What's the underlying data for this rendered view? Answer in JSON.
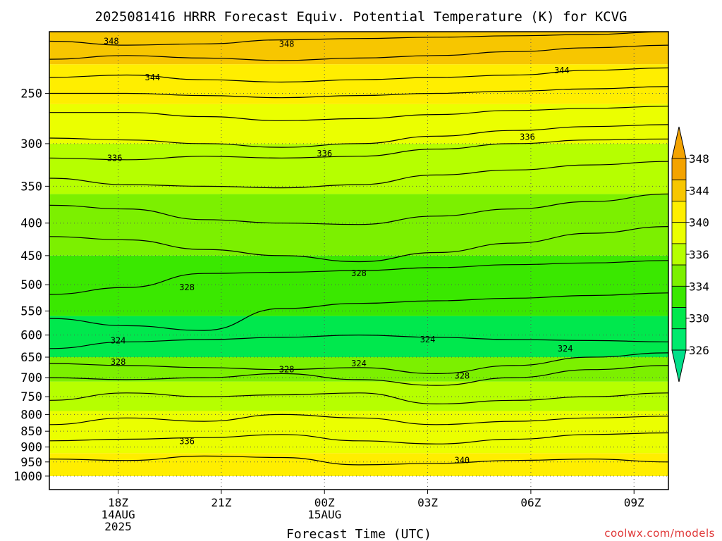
{
  "chart_data": {
    "type": "heatmap",
    "title": "2025081416 HRRR Forecast Equiv. Potential Temperature (K) for KCVG",
    "xlabel": "Forecast Time (UTC)",
    "ylabel": "",
    "y_scale": "log-pressure",
    "y_inverted": true,
    "x_range_hours": [
      -2,
      16
    ],
    "y_range_hpa": [
      200,
      1050
    ],
    "y_ticks": [
      250,
      300,
      350,
      400,
      450,
      500,
      550,
      600,
      650,
      700,
      750,
      800,
      850,
      900,
      950,
      1000
    ],
    "x_ticks": [
      {
        "hour": 0,
        "label": "18Z",
        "sub": [
          "14AUG",
          "2025"
        ]
      },
      {
        "hour": 3,
        "label": "21Z",
        "sub": []
      },
      {
        "hour": 6,
        "label": "00Z",
        "sub": [
          "15AUG"
        ]
      },
      {
        "hour": 9,
        "label": "03Z",
        "sub": []
      },
      {
        "hour": 12,
        "label": "06Z",
        "sub": []
      },
      {
        "hour": 15,
        "label": "09Z",
        "sub": []
      }
    ],
    "grid": "dotted",
    "colorbar": {
      "placement": "right",
      "labels": [
        348,
        344,
        340,
        336,
        334,
        330,
        326
      ],
      "bands": [
        {
          "color": "#f4a300"
        },
        {
          "color": "#f7c600"
        },
        {
          "color": "#ffee00"
        },
        {
          "color": "#ebff00"
        },
        {
          "color": "#b6ff00"
        },
        {
          "color": "#7cf000"
        },
        {
          "color": "#3ae800"
        },
        {
          "color": "#00e84d"
        },
        {
          "color": "#00ea6d"
        }
      ],
      "upper_arrow_color": "#f4a300",
      "lower_arrow_color": "#00e08a"
    },
    "fills": [
      {
        "p_top": 1050,
        "p_bot": 1000,
        "color": "#a84e2a"
      },
      {
        "p_top": 920,
        "p_bot": 1000,
        "color": "#ffee00"
      },
      {
        "p_top": 790,
        "p_bot": 920,
        "color": "#ebff00"
      },
      {
        "p_top": 710,
        "p_bot": 790,
        "color": "#b6ff00"
      },
      {
        "p_top": 650,
        "p_bot": 710,
        "color": "#7cf000"
      },
      {
        "p_top": 560,
        "p_bot": 650,
        "color": "#00e84d"
      },
      {
        "p_top": 450,
        "p_bot": 560,
        "color": "#3ae800"
      },
      {
        "p_top": 360,
        "p_bot": 450,
        "color": "#7cf000"
      },
      {
        "p_top": 300,
        "p_bot": 360,
        "color": "#b6ff00"
      },
      {
        "p_top": 260,
        "p_bot": 300,
        "color": "#ebff00"
      },
      {
        "p_top": 225,
        "p_bot": 260,
        "color": "#ffee00"
      },
      {
        "p_top": 200,
        "p_bot": 225,
        "color": "#f7c600"
      }
    ],
    "contours": [
      {
        "value": 348,
        "p": [
          207,
          210,
          209,
          206,
          205,
          204,
          203,
          202,
          200
        ]
      },
      {
        "value": 348,
        "p": [
          221,
          218,
          220,
          222,
          220,
          218,
          215,
          212,
          210
        ]
      },
      {
        "value": 344,
        "p": [
          236,
          234,
          238,
          240,
          238,
          236,
          234,
          230,
          228
        ]
      },
      {
        "value": 344,
        "p": [
          250,
          250,
          252,
          254,
          252,
          250,
          248,
          246,
          244
        ]
      },
      {
        "value": null,
        "p": [
          268,
          268,
          272,
          276,
          274,
          270,
          266,
          264,
          262
        ]
      },
      {
        "value": null,
        "p": [
          294,
          296,
          300,
          304,
          300,
          292,
          286,
          282,
          280
        ]
      },
      {
        "value": 336,
        "p": [
          316,
          318,
          314,
          316,
          314,
          306,
          300,
          296,
          295
        ]
      },
      {
        "value": 336,
        "p": [
          340,
          348,
          350,
          352,
          348,
          336,
          330,
          324,
          320
        ]
      },
      {
        "value": null,
        "p": [
          375,
          380,
          395,
          400,
          402,
          390,
          380,
          370,
          360
        ]
      },
      {
        "value": null,
        "p": [
          420,
          425,
          440,
          450,
          460,
          445,
          430,
          415,
          405
        ]
      },
      {
        "value": 328,
        "p": [
          518,
          505,
          480,
          478,
          475,
          470,
          465,
          462,
          458
        ]
      },
      {
        "value": null,
        "p": [
          565,
          580,
          590,
          545,
          535,
          530,
          525,
          520,
          515
        ]
      },
      {
        "value": 324,
        "p": [
          630,
          615,
          610,
          605,
          600,
          605,
          610,
          612,
          615
        ]
      },
      {
        "value": 328,
        "p": [
          665,
          670,
          675,
          680,
          675,
          690,
          670,
          650,
          640
        ]
      },
      {
        "value": null,
        "p": [
          700,
          705,
          700,
          690,
          705,
          720,
          700,
          680,
          670
        ]
      },
      {
        "value": null,
        "p": [
          760,
          740,
          750,
          745,
          740,
          770,
          760,
          750,
          740
        ]
      },
      {
        "value": null,
        "p": [
          830,
          810,
          820,
          800,
          810,
          830,
          820,
          810,
          805
        ]
      },
      {
        "value": 336,
        "p": [
          880,
          875,
          870,
          860,
          880,
          890,
          875,
          860,
          855
        ]
      },
      {
        "value": 340,
        "p": [
          940,
          945,
          930,
          935,
          960,
          955,
          945,
          940,
          950
        ]
      }
    ],
    "contour_labels": [
      {
        "hour": -0.2,
        "p": 207,
        "text": "348"
      },
      {
        "hour": 4.9,
        "p": 209,
        "text": "348"
      },
      {
        "hour": 1.0,
        "p": 236,
        "text": "344"
      },
      {
        "hour": 12.9,
        "p": 230,
        "text": "344"
      },
      {
        "hour": -0.1,
        "p": 316,
        "text": "336"
      },
      {
        "hour": 6.0,
        "p": 311,
        "text": "336"
      },
      {
        "hour": 11.9,
        "p": 293,
        "text": "336"
      },
      {
        "hour": 2.0,
        "p": 505,
        "text": "328"
      },
      {
        "hour": 7.0,
        "p": 480,
        "text": "328"
      },
      {
        "hour": 0.0,
        "p": 612,
        "text": "324"
      },
      {
        "hour": 9.0,
        "p": 610,
        "text": "324"
      },
      {
        "hour": 13.0,
        "p": 630,
        "text": "324"
      },
      {
        "hour": 7.0,
        "p": 665,
        "text": "324"
      },
      {
        "hour": 0.0,
        "p": 662,
        "text": "328"
      },
      {
        "hour": 4.9,
        "p": 680,
        "text": "328"
      },
      {
        "hour": 10.0,
        "p": 695,
        "text": "328"
      },
      {
        "hour": 2.0,
        "p": 882,
        "text": "336"
      },
      {
        "hour": 10.0,
        "p": 945,
        "text": "340"
      }
    ]
  },
  "watermark": "coolwx.com/models"
}
